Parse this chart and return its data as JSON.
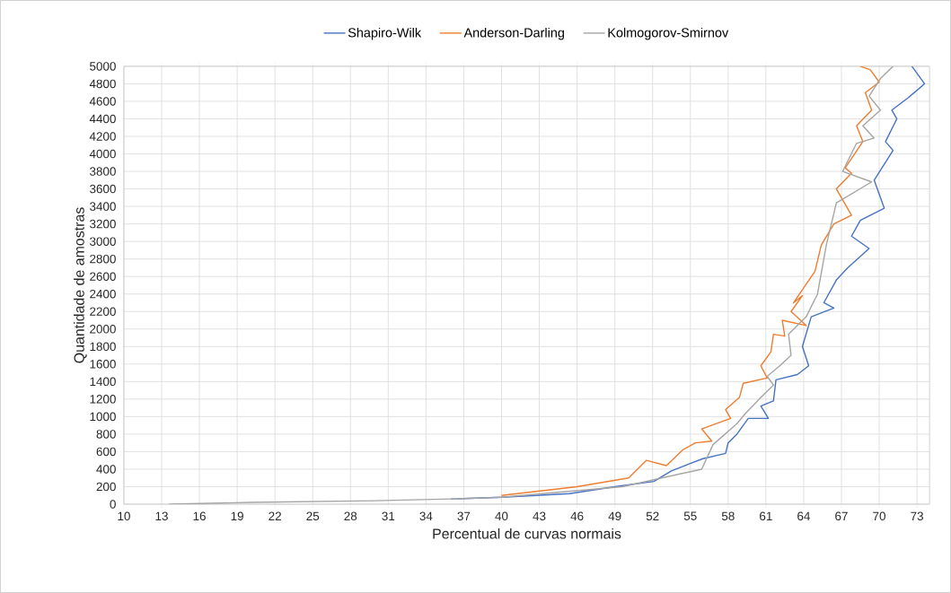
{
  "chart_data": {
    "type": "line",
    "xlabel": "Percentual de curvas normais",
    "ylabel": "Quantidade de amostras",
    "xlim": [
      10,
      74
    ],
    "xticks": [
      10,
      13,
      16,
      19,
      22,
      25,
      28,
      31,
      34,
      37,
      40,
      43,
      46,
      49,
      52,
      55,
      58,
      61,
      64,
      67,
      70,
      73
    ],
    "ylim": [
      0,
      5000
    ],
    "yticks": [
      0,
      200,
      400,
      600,
      800,
      1000,
      1200,
      1400,
      1600,
      1800,
      2000,
      2200,
      2400,
      2600,
      2800,
      3000,
      3200,
      3400,
      3600,
      3800,
      4000,
      4200,
      4400,
      4600,
      4800,
      5000
    ],
    "grid": true,
    "legend": "top",
    "line_style": "solid",
    "marker": "none",
    "series": [
      {
        "name": "Shapiro-Wilk",
        "color": "#4472c4",
        "x": [
          36,
          40.1,
          45.4,
          49,
          52.1,
          53.5,
          54.9,
          56,
          57.8,
          58,
          58.7,
          59.6,
          61.2,
          60.6,
          61.6,
          61.8,
          63.5,
          64.4,
          63.9,
          64.6,
          66.4,
          65.6,
          66.6,
          67.5,
          69.2,
          67.8,
          68.5,
          70.4,
          69.6,
          71.1,
          70.5,
          71.4,
          71,
          72.3,
          73.6,
          72.6
        ],
        "values": [
          60,
          80,
          120,
          200,
          260,
          380,
          460,
          520,
          580,
          700,
          800,
          980,
          980,
          1120,
          1180,
          1420,
          1480,
          1580,
          1800,
          2140,
          2240,
          2300,
          2560,
          2700,
          2920,
          3060,
          3240,
          3380,
          3700,
          4040,
          4140,
          4400,
          4500,
          4640,
          4800,
          5000
        ]
      },
      {
        "name": "Anderson-Darling",
        "color": "#ed7d31",
        "x": [
          40,
          46,
          50.1,
          51.5,
          53.1,
          54.4,
          55.4,
          56.7,
          55.9,
          58.2,
          57.8,
          58.9,
          59.2,
          61.1,
          60.6,
          61.4,
          61.6,
          62.5,
          62.3,
          64.2,
          63,
          63.9,
          63.2,
          64.9,
          65.4,
          66.4,
          67.8,
          66.6,
          67.8,
          67.3,
          68.7,
          68.2,
          69.4,
          68.9,
          70,
          69.3,
          68.5
        ],
        "values": [
          100,
          200,
          300,
          500,
          440,
          620,
          700,
          720,
          860,
          980,
          1080,
          1220,
          1380,
          1440,
          1580,
          1740,
          1940,
          1920,
          2100,
          2040,
          2200,
          2380,
          2300,
          2660,
          2960,
          3200,
          3300,
          3600,
          3780,
          3840,
          4140,
          4320,
          4500,
          4700,
          4820,
          4960,
          5000
        ]
      },
      {
        "name": "Kolmogorov-Smirnov",
        "color": "#a5a5a5",
        "x": [
          13.6,
          20,
          30,
          36,
          40,
          49.6,
          55.9,
          56.8,
          58.7,
          59.4,
          60.6,
          61.6,
          61.1,
          62.1,
          63,
          62.8,
          64.2,
          65.1,
          65.8,
          66.6,
          69.4,
          67.1,
          68.2,
          69.6,
          68.7,
          70.1,
          69.2,
          70.1,
          71.1
        ],
        "values": [
          0,
          20,
          40,
          60,
          80,
          200,
          400,
          680,
          920,
          1040,
          1220,
          1360,
          1460,
          1580,
          1700,
          1940,
          2140,
          2400,
          2960,
          3440,
          3680,
          3800,
          4120,
          4180,
          4320,
          4500,
          4660,
          4860,
          5000
        ]
      }
    ]
  }
}
